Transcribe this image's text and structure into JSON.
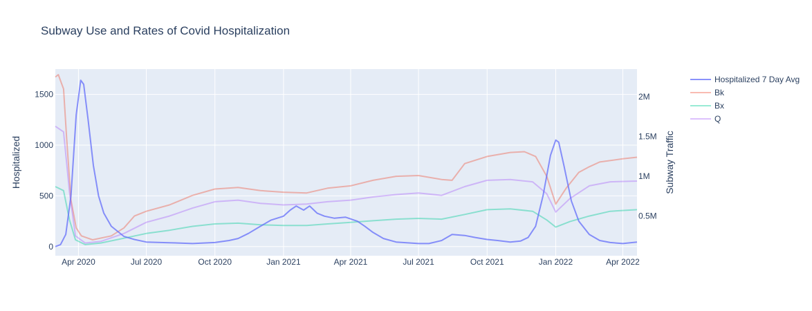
{
  "chart_data": {
    "type": "line",
    "title": "Subway Use and Rates of Covid Hospitalization",
    "xlabel": "",
    "x_range": [
      "2020-03-01",
      "2022-04-20"
    ],
    "x_ticks": [
      {
        "date": "2020-04-01",
        "label": "Apr 2020"
      },
      {
        "date": "2020-07-01",
        "label": "Jul 2020"
      },
      {
        "date": "2020-10-01",
        "label": "Oct 2020"
      },
      {
        "date": "2021-01-01",
        "label": "Jan 2021"
      },
      {
        "date": "2021-04-01",
        "label": "Apr 2021"
      },
      {
        "date": "2021-07-01",
        "label": "Jul 2021"
      },
      {
        "date": "2021-10-01",
        "label": "Oct 2021"
      },
      {
        "date": "2022-01-01",
        "label": "Jan 2022"
      },
      {
        "date": "2022-04-01",
        "label": "Apr 2022"
      }
    ],
    "y_left": {
      "label": "Hospitalized",
      "range": [
        -90,
        1750
      ],
      "ticks": [
        {
          "value": 0,
          "label": "0"
        },
        {
          "value": 500,
          "label": "500"
        },
        {
          "value": 1000,
          "label": "1000"
        },
        {
          "value": 1500,
          "label": "1500"
        }
      ]
    },
    "y_right": {
      "label": "Subway Traffic",
      "range": [
        0,
        2350000
      ],
      "ticks": [
        {
          "value": 500000,
          "label": "0.5M"
        },
        {
          "value": 1000000,
          "label": "1M"
        },
        {
          "value": 1500000,
          "label": "1.5M"
        },
        {
          "value": 2000000,
          "label": "2M"
        }
      ]
    },
    "grid": true,
    "legend": "right",
    "series": [
      {
        "name": "Hospitalized 7 Day Avg",
        "axis": "left",
        "color": "#636efa",
        "points": [
          [
            "2020-03-01",
            0
          ],
          [
            "2020-03-08",
            20
          ],
          [
            "2020-03-15",
            120
          ],
          [
            "2020-03-22",
            500
          ],
          [
            "2020-03-29",
            1300
          ],
          [
            "2020-04-04",
            1640
          ],
          [
            "2020-04-08",
            1600
          ],
          [
            "2020-04-14",
            1250
          ],
          [
            "2020-04-21",
            800
          ],
          [
            "2020-04-28",
            500
          ],
          [
            "2020-05-05",
            330
          ],
          [
            "2020-05-15",
            200
          ],
          [
            "2020-06-01",
            100
          ],
          [
            "2020-06-15",
            70
          ],
          [
            "2020-07-01",
            45
          ],
          [
            "2020-08-01",
            38
          ],
          [
            "2020-09-01",
            30
          ],
          [
            "2020-10-01",
            40
          ],
          [
            "2020-10-20",
            60
          ],
          [
            "2020-11-01",
            80
          ],
          [
            "2020-11-15",
            130
          ],
          [
            "2020-12-01",
            200
          ],
          [
            "2020-12-15",
            260
          ],
          [
            "2021-01-01",
            300
          ],
          [
            "2021-01-10",
            360
          ],
          [
            "2021-01-18",
            400
          ],
          [
            "2021-01-28",
            360
          ],
          [
            "2021-02-05",
            400
          ],
          [
            "2021-02-15",
            330
          ],
          [
            "2021-02-25",
            300
          ],
          [
            "2021-03-10",
            280
          ],
          [
            "2021-03-25",
            290
          ],
          [
            "2021-04-10",
            250
          ],
          [
            "2021-04-20",
            200
          ],
          [
            "2021-05-01",
            140
          ],
          [
            "2021-05-15",
            80
          ],
          [
            "2021-06-01",
            45
          ],
          [
            "2021-07-01",
            30
          ],
          [
            "2021-07-15",
            30
          ],
          [
            "2021-08-01",
            60
          ],
          [
            "2021-08-15",
            120
          ],
          [
            "2021-09-01",
            110
          ],
          [
            "2021-09-15",
            90
          ],
          [
            "2021-10-01",
            70
          ],
          [
            "2021-10-15",
            60
          ],
          [
            "2021-11-01",
            45
          ],
          [
            "2021-11-15",
            55
          ],
          [
            "2021-11-25",
            90
          ],
          [
            "2021-12-05",
            200
          ],
          [
            "2021-12-15",
            500
          ],
          [
            "2021-12-25",
            900
          ],
          [
            "2022-01-01",
            1050
          ],
          [
            "2022-01-05",
            1030
          ],
          [
            "2022-01-12",
            800
          ],
          [
            "2022-01-22",
            450
          ],
          [
            "2022-02-01",
            250
          ],
          [
            "2022-02-15",
            120
          ],
          [
            "2022-03-01",
            60
          ],
          [
            "2022-03-15",
            40
          ],
          [
            "2022-04-01",
            30
          ],
          [
            "2022-04-20",
            45
          ]
        ]
      },
      {
        "name": "Bk",
        "axis": "right",
        "color": "#ef553b",
        "points": [
          [
            "2020-03-01",
            2250000
          ],
          [
            "2020-03-05",
            2280000
          ],
          [
            "2020-03-12",
            2100000
          ],
          [
            "2020-03-16",
            1500000
          ],
          [
            "2020-03-22",
            700000
          ],
          [
            "2020-03-29",
            350000
          ],
          [
            "2020-04-05",
            250000
          ],
          [
            "2020-04-20",
            200000
          ],
          [
            "2020-05-15",
            250000
          ],
          [
            "2020-06-01",
            350000
          ],
          [
            "2020-06-15",
            500000
          ],
          [
            "2020-07-01",
            560000
          ],
          [
            "2020-08-01",
            640000
          ],
          [
            "2020-09-01",
            760000
          ],
          [
            "2020-10-01",
            840000
          ],
          [
            "2020-11-01",
            860000
          ],
          [
            "2020-12-01",
            820000
          ],
          [
            "2021-01-01",
            800000
          ],
          [
            "2021-02-01",
            790000
          ],
          [
            "2021-03-01",
            850000
          ],
          [
            "2021-04-01",
            880000
          ],
          [
            "2021-05-01",
            950000
          ],
          [
            "2021-06-01",
            1000000
          ],
          [
            "2021-07-01",
            1010000
          ],
          [
            "2021-08-01",
            960000
          ],
          [
            "2021-08-15",
            950000
          ],
          [
            "2021-09-01",
            1160000
          ],
          [
            "2021-10-01",
            1250000
          ],
          [
            "2021-11-01",
            1300000
          ],
          [
            "2021-11-20",
            1310000
          ],
          [
            "2021-12-05",
            1250000
          ],
          [
            "2021-12-20",
            1000000
          ],
          [
            "2022-01-01",
            650000
          ],
          [
            "2022-01-15",
            850000
          ],
          [
            "2022-02-01",
            1050000
          ],
          [
            "2022-02-15",
            1120000
          ],
          [
            "2022-03-01",
            1180000
          ],
          [
            "2022-04-01",
            1220000
          ],
          [
            "2022-04-20",
            1240000
          ]
        ]
      },
      {
        "name": "Bx",
        "axis": "right",
        "color": "#00cc96",
        "points": [
          [
            "2020-03-01",
            870000
          ],
          [
            "2020-03-12",
            820000
          ],
          [
            "2020-03-20",
            450000
          ],
          [
            "2020-03-28",
            200000
          ],
          [
            "2020-04-10",
            140000
          ],
          [
            "2020-05-01",
            160000
          ],
          [
            "2020-06-01",
            220000
          ],
          [
            "2020-07-01",
            280000
          ],
          [
            "2020-08-01",
            320000
          ],
          [
            "2020-09-01",
            370000
          ],
          [
            "2020-10-01",
            400000
          ],
          [
            "2020-11-01",
            410000
          ],
          [
            "2020-12-01",
            390000
          ],
          [
            "2021-01-01",
            380000
          ],
          [
            "2021-02-01",
            380000
          ],
          [
            "2021-03-01",
            400000
          ],
          [
            "2021-04-01",
            420000
          ],
          [
            "2021-05-01",
            440000
          ],
          [
            "2021-06-01",
            460000
          ],
          [
            "2021-07-01",
            470000
          ],
          [
            "2021-08-01",
            460000
          ],
          [
            "2021-09-01",
            520000
          ],
          [
            "2021-10-01",
            580000
          ],
          [
            "2021-11-01",
            590000
          ],
          [
            "2021-12-01",
            560000
          ],
          [
            "2021-12-20",
            450000
          ],
          [
            "2022-01-01",
            360000
          ],
          [
            "2022-01-20",
            430000
          ],
          [
            "2022-02-15",
            500000
          ],
          [
            "2022-03-15",
            560000
          ],
          [
            "2022-04-20",
            580000
          ]
        ]
      },
      {
        "name": "Q",
        "axis": "right",
        "color": "#ab63fa",
        "points": [
          [
            "2020-03-01",
            1630000
          ],
          [
            "2020-03-12",
            1560000
          ],
          [
            "2020-03-20",
            800000
          ],
          [
            "2020-03-28",
            250000
          ],
          [
            "2020-04-10",
            160000
          ],
          [
            "2020-05-01",
            180000
          ],
          [
            "2020-06-01",
            280000
          ],
          [
            "2020-07-01",
            420000
          ],
          [
            "2020-08-01",
            500000
          ],
          [
            "2020-09-01",
            600000
          ],
          [
            "2020-10-01",
            680000
          ],
          [
            "2020-11-01",
            700000
          ],
          [
            "2020-12-01",
            660000
          ],
          [
            "2021-01-01",
            640000
          ],
          [
            "2021-02-01",
            650000
          ],
          [
            "2021-03-01",
            680000
          ],
          [
            "2021-04-01",
            700000
          ],
          [
            "2021-05-01",
            740000
          ],
          [
            "2021-06-01",
            770000
          ],
          [
            "2021-07-01",
            790000
          ],
          [
            "2021-08-01",
            760000
          ],
          [
            "2021-09-01",
            870000
          ],
          [
            "2021-10-01",
            950000
          ],
          [
            "2021-11-01",
            960000
          ],
          [
            "2021-12-01",
            930000
          ],
          [
            "2021-12-20",
            780000
          ],
          [
            "2022-01-01",
            550000
          ],
          [
            "2022-01-20",
            720000
          ],
          [
            "2022-02-15",
            880000
          ],
          [
            "2022-03-15",
            930000
          ],
          [
            "2022-04-20",
            940000
          ]
        ]
      }
    ]
  }
}
